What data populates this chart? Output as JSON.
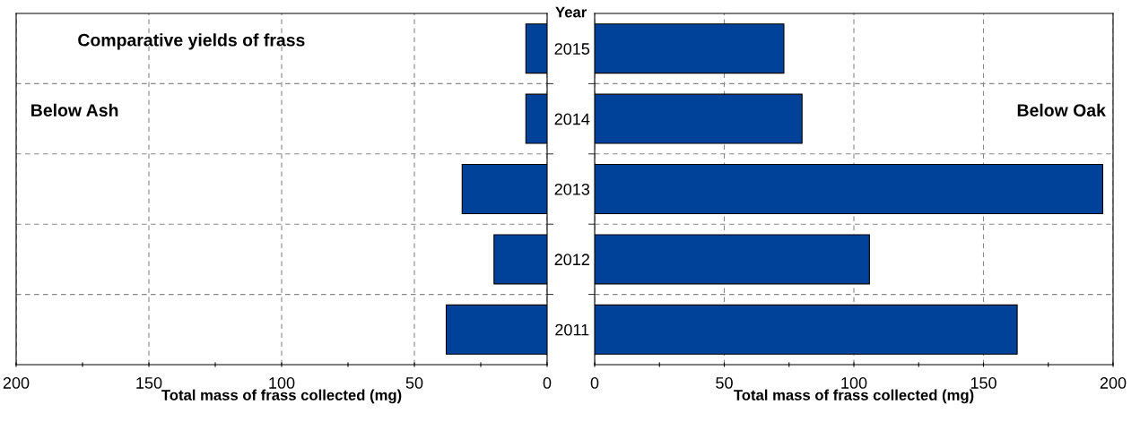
{
  "chart_data": [
    {
      "type": "bar",
      "orientation": "horizontal",
      "title": "Comparative yields of frass",
      "ylabel": "Year",
      "xlabel": "Total mass of frass collected (mg)",
      "annotations": [
        "Below Ash"
      ],
      "categories": [
        "2015",
        "2014",
        "2013",
        "2012",
        "2011"
      ],
      "series": [
        {
          "color": "#00429a",
          "values": [
            8,
            8,
            32,
            20,
            38
          ]
        }
      ],
      "xlim": [
        200,
        0
      ],
      "xticks": [
        200,
        {
          "value": 175,
          "label": null
        },
        150,
        {
          "value": 125,
          "label": null
        },
        100,
        {
          "value": 75,
          "label": null
        },
        50,
        {
          "value": 25,
          "label": null
        },
        0
      ],
      "grid": true,
      "legend": false
    },
    {
      "type": "bar",
      "orientation": "horizontal",
      "xlabel": "Total mass of frass collected (mg)",
      "annotations": [
        "Below Oak"
      ],
      "categories": [
        "2015",
        "2014",
        "2013",
        "2012",
        "2011"
      ],
      "series": [
        {
          "color": "#00429a",
          "values": [
            73,
            80,
            196,
            106,
            163
          ]
        }
      ],
      "xlim": [
        0,
        200
      ],
      "xticks": [
        0,
        {
          "value": 25,
          "label": null
        },
        50,
        {
          "value": 75,
          "label": null
        },
        100,
        {
          "value": 125,
          "label": null
        },
        150,
        {
          "value": 175,
          "label": null
        },
        200
      ],
      "grid": true,
      "legend": false,
      "tick_labels": "x"
    }
  ]
}
